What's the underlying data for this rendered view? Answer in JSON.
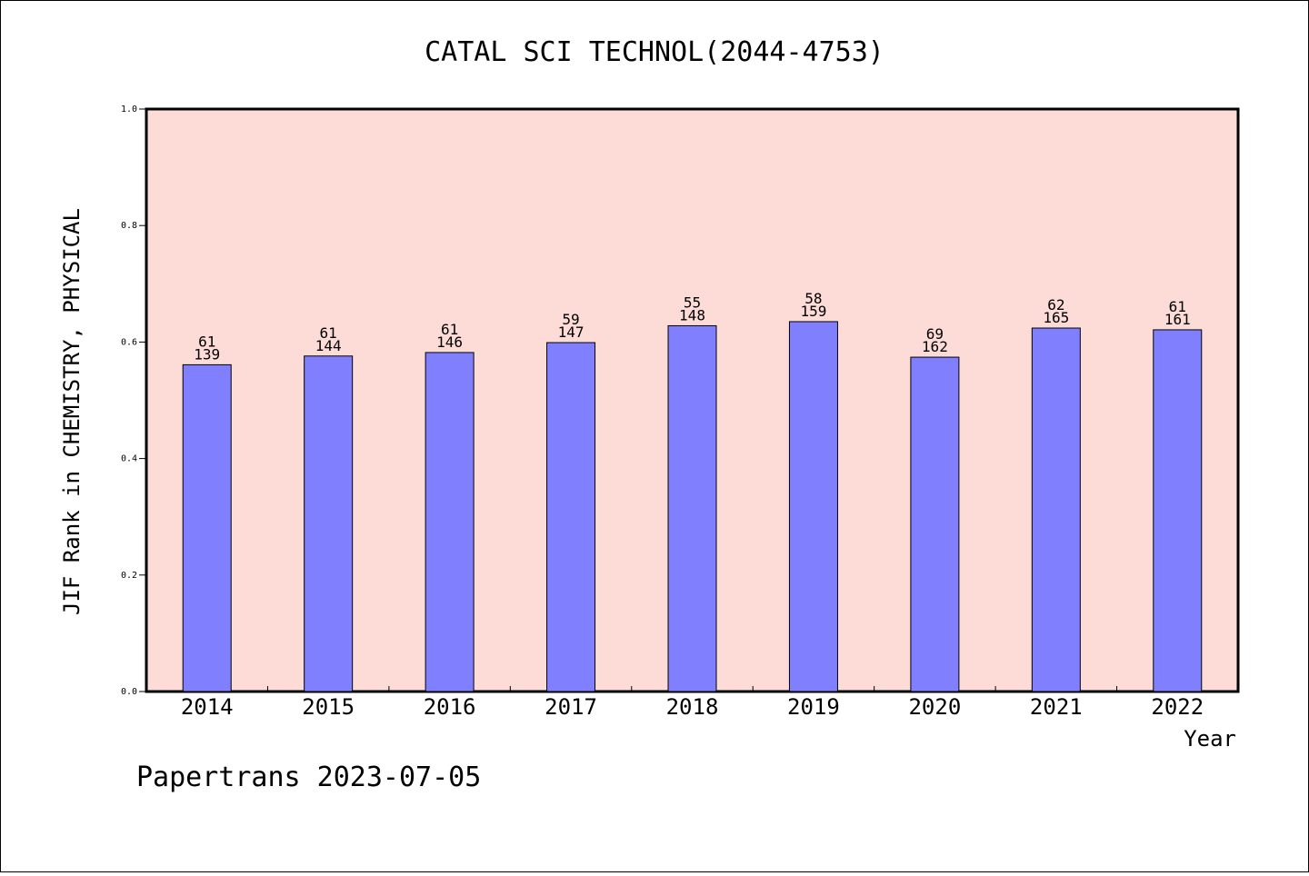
{
  "chart_data": {
    "type": "bar",
    "title": "CATAL SCI TECHNOL(2044-4753)",
    "xlabel": "Year",
    "ylabel": "JIF Rank in CHEMISTRY, PHYSICAL",
    "ylim": [
      0,
      1.0
    ],
    "yticks": [
      "0.0",
      "0.2",
      "0.4",
      "0.6",
      "0.8",
      "1.0"
    ],
    "categories": [
      "2014",
      "2015",
      "2016",
      "2017",
      "2018",
      "2019",
      "2020",
      "2021",
      "2022"
    ],
    "values": [
      0.561,
      0.576,
      0.582,
      0.599,
      0.628,
      0.635,
      0.574,
      0.624,
      0.621
    ],
    "rank": [
      "61",
      "61",
      "61",
      "59",
      "55",
      "58",
      "69",
      "62",
      "61"
    ],
    "total": [
      "139",
      "144",
      "146",
      "147",
      "148",
      "159",
      "162",
      "165",
      "161"
    ],
    "grid": false,
    "bar_color": "#8080ff",
    "plot_background": "#fddcd8"
  },
  "footer": "Papertrans 2023-07-05"
}
